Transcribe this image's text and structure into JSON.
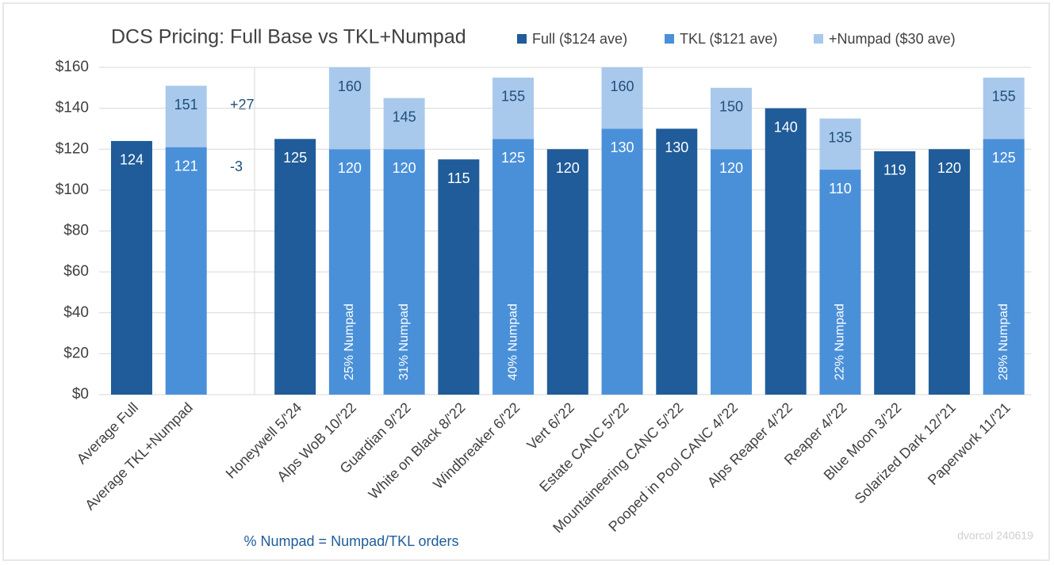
{
  "chart_data": {
    "type": "stacked_bar",
    "title": "DCS Pricing: Full Base vs TKL+Numpad",
    "categories": [
      "Average Full",
      "Average TKL+Numpad",
      null,
      "Honeywell 5/'24",
      "Alps WoB 10/'22",
      "Guardian 9/'22",
      "White on Black 8/'22",
      "Windbreaker 6/'22",
      "Vert 6/'22",
      "Estate CANC 5/'22",
      "Mountaineering CANC 5/'22",
      "Pooped in Pool CANC 4/'22",
      "Alps Reaper 4/'22",
      "Reaper 4/'22",
      "Blue Moon 3/'22",
      "Solarized Dark 12/'21",
      "Paperwork 11/'21"
    ],
    "series": [
      {
        "name": "Full ($124 ave)",
        "color": "#1f5c99",
        "values": [
          124,
          null,
          null,
          125,
          null,
          null,
          115,
          null,
          120,
          null,
          130,
          null,
          140,
          null,
          119,
          120,
          null
        ]
      },
      {
        "name": "TKL ($121 ave)",
        "color": "#4a90d9",
        "values": [
          null,
          121,
          null,
          null,
          120,
          120,
          null,
          125,
          null,
          130,
          null,
          120,
          null,
          110,
          null,
          null,
          125
        ]
      },
      {
        "name": "+Numpad ($30 ave)",
        "color": "#a9c9ec",
        "values": [
          null,
          30,
          null,
          null,
          40,
          25,
          null,
          30,
          null,
          30,
          null,
          30,
          null,
          25,
          null,
          null,
          30
        ]
      }
    ],
    "totals": [
      null,
      151,
      null,
      null,
      160,
      145,
      null,
      155,
      null,
      160,
      null,
      150,
      null,
      135,
      null,
      null,
      155
    ],
    "share_labels": [
      null,
      null,
      null,
      null,
      "25% Numpad",
      "31% Numpad",
      null,
      "40% Numpad",
      null,
      null,
      null,
      null,
      null,
      "22% Numpad",
      null,
      null,
      "28% Numpad"
    ],
    "annotations": [
      "+27",
      "-3"
    ],
    "footnote": "% Numpad = Numpad/TKL orders",
    "watermark": "dvorcol 240619",
    "ylim": [
      0,
      160
    ],
    "yticks": [
      {
        "value": 0,
        "label": "$0"
      },
      {
        "value": 20,
        "label": "$20"
      },
      {
        "value": 40,
        "label": "$40"
      },
      {
        "value": 60,
        "label": "$60"
      },
      {
        "value": 80,
        "label": "$80"
      },
      {
        "value": 100,
        "label": "$100"
      },
      {
        "value": 120,
        "label": "$120"
      },
      {
        "value": 140,
        "label": "$140"
      },
      {
        "value": 160,
        "label": "$160"
      }
    ],
    "grid": true,
    "legend": "top"
  }
}
